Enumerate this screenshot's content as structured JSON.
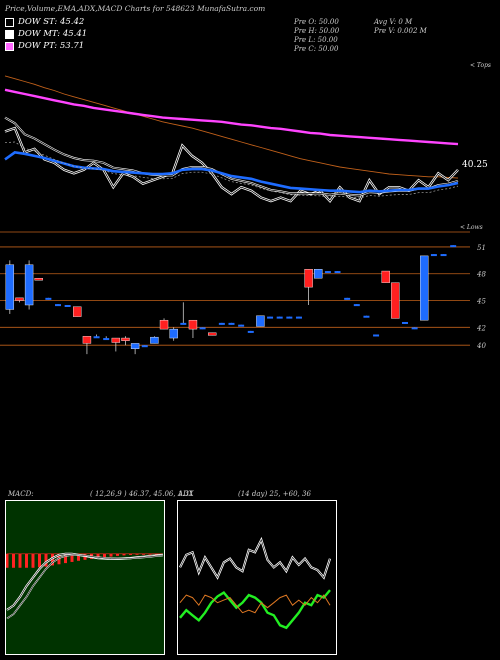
{
  "header": {
    "title": "Price,Volume,EMA,ADX,MACD Charts for 548623 MunafaSutra.com",
    "ohlc": {
      "open": "Pre O: 50.00",
      "high": "Pre H: 50.00",
      "low": "Pre L: 50.00",
      "close": "Pre C: 50.00"
    },
    "volume": {
      "avg": "Avg V: 0 M",
      "pre": "Pre V: 0.002 M"
    }
  },
  "legend": [
    {
      "label": "DOW ST: 45.42",
      "color": "#000000"
    },
    {
      "label": "DOW MT: 45.41",
      "color": "#ffffff"
    },
    {
      "label": "DOW PT: 53.71",
      "color": "#ff66ff"
    }
  ],
  "colors": {
    "up": "#1e6cff",
    "down": "#ff2020",
    "ema_short": "#1e6cff",
    "ema_long": "#ff44ff",
    "ema_mid": "#c0601a",
    "price": "#ffffff",
    "adx_plus": "#22ee22",
    "adx_minus": "#dd7722"
  },
  "chart_data": [
    {
      "type": "line",
      "title": "",
      "y_label_right": "40.25",
      "right_tag_top": "< Tops",
      "right_tag_bottom": "< Lows",
      "series": [
        {
          "name": "",
          "values": [
            52,
            52.5,
            49,
            49.5,
            48,
            47.5,
            46.5,
            46,
            46.5,
            47.5,
            46.5,
            44,
            46,
            45.5,
            44.5,
            45,
            45.5,
            46,
            50,
            48.5,
            47.5,
            46,
            44,
            43,
            44,
            43.5,
            42.5,
            42,
            42.5,
            42,
            43.5,
            43,
            43.5,
            42,
            44,
            42.5,
            42,
            45,
            43,
            44,
            44,
            43.5,
            45,
            44,
            46,
            45,
            46.5
          ]
        },
        {
          "name": "",
          "values": [
            54,
            53.2,
            51.6,
            51,
            50.2,
            49.4,
            48.7,
            48.2,
            47.9,
            47.8,
            47.5,
            46.8,
            46.6,
            46.4,
            46,
            45.8,
            45.7,
            45.7,
            46.6,
            46.9,
            46.9,
            46.6,
            45.9,
            45.2,
            44.9,
            44.6,
            44.1,
            43.6,
            43.4,
            43.1,
            43.1,
            43.1,
            43.1,
            42.9,
            43.1,
            42.9,
            42.8,
            43.3,
            43.2,
            43.4,
            43.5,
            43.5,
            43.8,
            43.8,
            44.3,
            44.5,
            44.9
          ]
        },
        {
          "name": "",
          "values": [
            48,
            49,
            48.8,
            48.5,
            48.2,
            47.8,
            47.4,
            47,
            46.8,
            46.7,
            46.6,
            46.3,
            46.2,
            46.1,
            46,
            45.9,
            45.9,
            46,
            46.5,
            46.6,
            46.6,
            46.4,
            46,
            45.6,
            45.4,
            45.2,
            44.8,
            44.5,
            44.2,
            43.9,
            43.8,
            43.7,
            43.6,
            43.5,
            43.5,
            43.4,
            43.3,
            43.5,
            43.4,
            43.5,
            43.6,
            43.6,
            43.8,
            43.8,
            44.1,
            44.3,
            44.6
          ]
        },
        {
          "name": "",
          "values": [
            58,
            57.7,
            57.4,
            57.1,
            56.8,
            56.5,
            56.2,
            55.9,
            55.7,
            55.4,
            55.2,
            55,
            54.8,
            54.6,
            54.4,
            54.2,
            54,
            53.9,
            53.8,
            53.7,
            53.6,
            53.5,
            53.4,
            53.2,
            53,
            52.9,
            52.7,
            52.5,
            52.4,
            52.2,
            52,
            51.8,
            51.7,
            51.5,
            51.4,
            51.3,
            51.2,
            51.1,
            51,
            50.9,
            50.8,
            50.7,
            50.6,
            50.5,
            50.4,
            50.3,
            50.2
          ]
        },
        {
          "name": "",
          "values": [
            60,
            59.6,
            59.2,
            58.8,
            58.3,
            57.9,
            57.4,
            57,
            56.6,
            56.2,
            55.8,
            55.4,
            55,
            54.6,
            54.2,
            53.8,
            53.4,
            53.1,
            52.8,
            52.5,
            52.1,
            51.7,
            51.3,
            50.9,
            50.5,
            50.1,
            49.7,
            49.3,
            48.9,
            48.5,
            48.1,
            47.8,
            47.5,
            47.2,
            46.9,
            46.7,
            46.5,
            46.3,
            46.1,
            45.9,
            45.8,
            45.7,
            45.6,
            45.5,
            45.5,
            45.4,
            45.3
          ]
        }
      ],
      "ylim": [
        40,
        62
      ]
    },
    {
      "type": "candlestick",
      "title": "",
      "y_ticks": [
        "51",
        "48",
        "45",
        "42",
        "40"
      ],
      "candles": [
        {
          "open": 49,
          "close": 44,
          "high": 49.5,
          "low": 43.5,
          "dir": "up"
        },
        {
          "open": 45,
          "close": 45.3,
          "high": 45.3,
          "low": 44.8,
          "dir": "down"
        },
        {
          "open": 49,
          "close": 44.5,
          "high": 49.5,
          "low": 44,
          "dir": "up"
        },
        {
          "open": 47.5,
          "close": 47.3,
          "high": 47.5,
          "low": 47.3,
          "dir": "down"
        },
        {
          "open": 45.3,
          "close": 45.1,
          "high": 45.3,
          "low": 45.1,
          "dir": "flat"
        },
        {
          "open": 44.6,
          "close": 44.4,
          "high": 44.6,
          "low": 44.4,
          "dir": "flat"
        },
        {
          "open": 44.5,
          "close": 44.3,
          "high": 44.5,
          "low": 44.3,
          "dir": "flat"
        },
        {
          "open": 44.3,
          "close": 43.2,
          "high": 44.3,
          "low": 43.2,
          "dir": "down"
        },
        {
          "open": 41,
          "close": 40.2,
          "high": 41,
          "low": 39,
          "dir": "down"
        },
        {
          "open": 41,
          "close": 40.8,
          "high": 41.2,
          "low": 40.8,
          "dir": "flat"
        },
        {
          "open": 40.8,
          "close": 40.6,
          "high": 41,
          "low": 40.6,
          "dir": "flat"
        },
        {
          "open": 40.8,
          "close": 40.3,
          "high": 40.8,
          "low": 39.3,
          "dir": "down"
        },
        {
          "open": 40.8,
          "close": 40.5,
          "high": 41,
          "low": 40,
          "dir": "down"
        },
        {
          "open": 40.2,
          "close": 39.6,
          "high": 40.2,
          "low": 39,
          "dir": "up"
        },
        {
          "open": 40,
          "close": 39.8,
          "high": 40,
          "low": 39.8,
          "dir": "flat"
        },
        {
          "open": 40.9,
          "close": 40.2,
          "high": 41,
          "low": 40.2,
          "dir": "up"
        },
        {
          "open": 42.8,
          "close": 41.8,
          "high": 43,
          "low": 41.8,
          "dir": "down"
        },
        {
          "open": 41.8,
          "close": 40.8,
          "high": 42,
          "low": 40.5,
          "dir": "up"
        },
        {
          "open": 42.5,
          "close": 42.3,
          "high": 44.8,
          "low": 42.3,
          "dir": "flat"
        },
        {
          "open": 42.8,
          "close": 41.8,
          "high": 42.8,
          "low": 40.8,
          "dir": "down"
        },
        {
          "open": 42,
          "close": 41.8,
          "high": 42,
          "low": 41.8,
          "dir": "flat"
        },
        {
          "open": 41.4,
          "close": 41.1,
          "high": 41.4,
          "low": 41.1,
          "dir": "down"
        },
        {
          "open": 42.5,
          "close": 42.3,
          "high": 42.5,
          "low": 42.3,
          "dir": "flat"
        },
        {
          "open": 42.5,
          "close": 42.3,
          "high": 42.5,
          "low": 42.3,
          "dir": "flat"
        },
        {
          "open": 42.3,
          "close": 42.1,
          "high": 42.3,
          "low": 42.1,
          "dir": "flat"
        },
        {
          "open": 41.6,
          "close": 41.4,
          "high": 41.6,
          "low": 41.4,
          "dir": "flat"
        },
        {
          "open": 43.3,
          "close": 42.1,
          "high": 43.3,
          "low": 42.1,
          "dir": "up"
        },
        {
          "open": 43.2,
          "close": 43,
          "high": 43.2,
          "low": 43,
          "dir": "flat"
        },
        {
          "open": 43.2,
          "close": 43,
          "high": 43.2,
          "low": 43,
          "dir": "flat"
        },
        {
          "open": 43.2,
          "close": 43,
          "high": 43.2,
          "low": 43,
          "dir": "flat"
        },
        {
          "open": 43.2,
          "close": 43,
          "high": 43.2,
          "low": 43,
          "dir": "flat"
        },
        {
          "open": 48.5,
          "close": 46.5,
          "high": 48.5,
          "low": 44.5,
          "dir": "down"
        },
        {
          "open": 48.5,
          "close": 47.5,
          "high": 48.5,
          "low": 47.5,
          "dir": "up"
        },
        {
          "open": 48.3,
          "close": 48.1,
          "high": 48.3,
          "low": 48.1,
          "dir": "flat"
        },
        {
          "open": 48.3,
          "close": 48.1,
          "high": 48.3,
          "low": 48.1,
          "dir": "flat"
        },
        {
          "open": 45.3,
          "close": 45.1,
          "high": 45.3,
          "low": 45.1,
          "dir": "flat"
        },
        {
          "open": 44.6,
          "close": 44.4,
          "high": 44.6,
          "low": 44.4,
          "dir": "flat"
        },
        {
          "open": 43.3,
          "close": 43.1,
          "high": 43.3,
          "low": 43.1,
          "dir": "flat"
        },
        {
          "open": 41.2,
          "close": 41,
          "high": 41.2,
          "low": 41,
          "dir": "flat"
        },
        {
          "open": 48.3,
          "close": 47,
          "high": 48.3,
          "low": 47,
          "dir": "down"
        },
        {
          "open": 47,
          "close": 43,
          "high": 47,
          "low": 43,
          "dir": "down"
        },
        {
          "open": 42.6,
          "close": 42.4,
          "high": 42.6,
          "low": 42.4,
          "dir": "flat"
        },
        {
          "open": 42,
          "close": 41.8,
          "high": 42,
          "low": 41.8,
          "dir": "flat"
        },
        {
          "open": 42.8,
          "close": 50,
          "high": 50,
          "low": 42.8,
          "dir": "up"
        },
        {
          "open": 50.2,
          "close": 50,
          "high": 50.2,
          "low": 50,
          "dir": "flat"
        },
        {
          "open": 50.2,
          "close": 50,
          "high": 50.2,
          "low": 50,
          "dir": "flat"
        },
        {
          "open": 51.2,
          "close": 51,
          "high": 51.2,
          "low": 51,
          "dir": "flat"
        }
      ],
      "ylim": [
        37,
        52
      ]
    },
    {
      "type": "line",
      "title": "MACD:",
      "params": "( 12,26,9 ) 46.37, 45.06, 1.31",
      "series": [
        {
          "name": "",
          "values": [
            -20,
            -18,
            -14,
            -9,
            -5,
            -1,
            2,
            4,
            5.5,
            6,
            6,
            5.5,
            5,
            4.5,
            4,
            3.8,
            3.6,
            3.6,
            3.8,
            4,
            4.3,
            4.6,
            4.9,
            5.2,
            5.5
          ]
        },
        {
          "name": "",
          "values": [
            -24,
            -22,
            -18,
            -14,
            -9,
            -5,
            -1,
            2,
            4,
            5,
            5.5,
            5.5,
            5.2,
            4.8,
            4.4,
            4.1,
            3.9,
            3.8,
            3.8,
            3.9,
            4.1,
            4.3,
            4.6,
            4.9,
            5.2
          ]
        },
        {
          "name": "",
          "values": [
            6,
            6,
            6,
            6,
            6,
            5.8,
            5.5,
            5,
            4.5,
            4,
            3.5,
            3,
            2.6,
            2.2,
            1.8,
            1.5,
            1.2,
            0.9,
            0.7,
            0.5,
            0.3,
            0.2,
            0.1,
            0.05,
            0
          ]
        }
      ],
      "ylim": [
        -40,
        30
      ]
    },
    {
      "type": "line",
      "title": "ADX",
      "params": "(14 day) 25, +60, 36",
      "series": [
        {
          "name": "",
          "values": [
            48,
            58,
            60,
            44,
            56,
            48,
            40,
            52,
            55,
            48,
            45,
            62,
            60,
            70,
            54,
            48,
            52,
            45,
            56,
            50,
            55,
            48,
            46,
            40,
            55
          ]
        },
        {
          "name": "",
          "values": [
            8,
            14,
            10,
            6,
            12,
            20,
            25,
            28,
            22,
            16,
            20,
            26,
            24,
            20,
            12,
            10,
            2,
            0,
            6,
            12,
            20,
            18,
            26,
            24,
            30
          ]
        },
        {
          "name": "",
          "values": [
            20,
            26,
            24,
            18,
            26,
            24,
            20,
            22,
            24,
            18,
            12,
            14,
            12,
            20,
            16,
            20,
            24,
            26,
            18,
            22,
            18,
            24,
            20,
            26,
            18
          ]
        }
      ],
      "ylim": [
        -20,
        100
      ]
    }
  ]
}
